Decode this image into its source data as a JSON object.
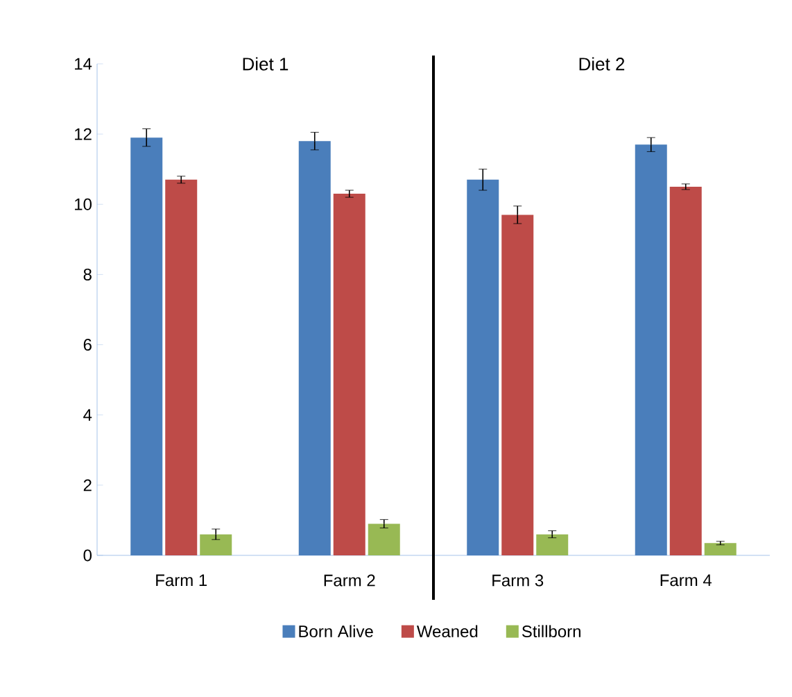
{
  "chart_data": {
    "type": "bar",
    "categories": [
      "Farm 1",
      "Farm 2",
      "Farm 3",
      "Farm 4"
    ],
    "series": [
      {
        "name": "Born Alive",
        "color": "#4a7ebb",
        "values": [
          11.9,
          11.8,
          10.7,
          11.7
        ],
        "errors": [
          0.25,
          0.25,
          0.3,
          0.2
        ]
      },
      {
        "name": "Weaned",
        "color": "#be4b48",
        "values": [
          10.7,
          10.3,
          9.7,
          10.5
        ],
        "errors": [
          0.1,
          0.1,
          0.25,
          0.08
        ]
      },
      {
        "name": "Stillborn",
        "color": "#98b954",
        "values": [
          0.6,
          0.9,
          0.6,
          0.35
        ],
        "errors": [
          0.15,
          0.12,
          0.1,
          0.05
        ]
      }
    ],
    "ylim": [
      0,
      14
    ],
    "yticks": [
      0,
      2,
      4,
      6,
      8,
      10,
      12,
      14
    ],
    "annotations": [
      "Diet 1",
      "Diet 2"
    ],
    "legend": "bottom",
    "grid": false
  }
}
